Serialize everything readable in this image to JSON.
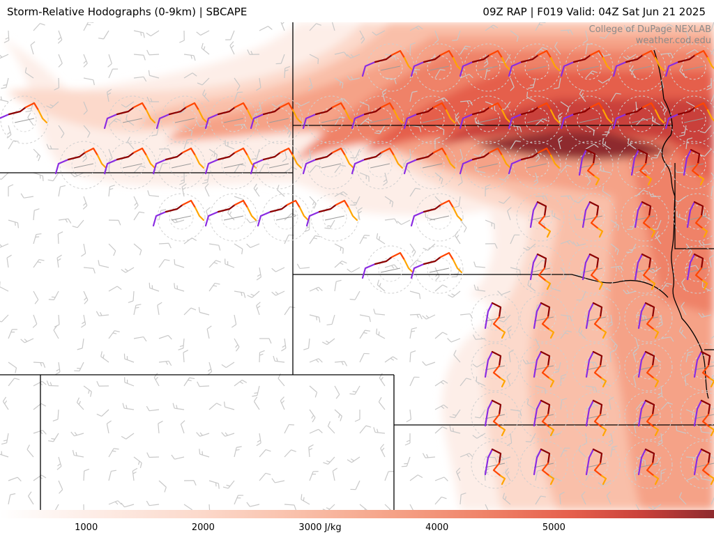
{
  "title": {
    "left": "Storm-Relative Hodographs (0-9km) | SBCAPE",
    "right": "09Z RAP | F019 Valid: 04Z Sat Jun 21 2025"
  },
  "credit": {
    "line1": "College of DuPage NEXLAB",
    "line2": "weather.cod.edu"
  },
  "colorbar": {
    "labels": [
      {
        "text": "1000",
        "value": 1000
      },
      {
        "text": "2000",
        "value": 2000
      },
      {
        "text": "3000 J/kg",
        "value": 3000
      },
      {
        "text": "4000",
        "value": 4000
      },
      {
        "text": "5000",
        "value": 5000
      }
    ],
    "min": 0,
    "max": 6000,
    "colors": [
      "#fdeee8",
      "#fcd9cb",
      "#f9bfa9",
      "#f5a287",
      "#ef8268",
      "#e55f4c",
      "#c9413a",
      "#8e2a2e"
    ]
  },
  "hodograph_colors": [
    "#8a2be2",
    "#8b0000",
    "#ff4500",
    "#ffa500"
  ]
}
